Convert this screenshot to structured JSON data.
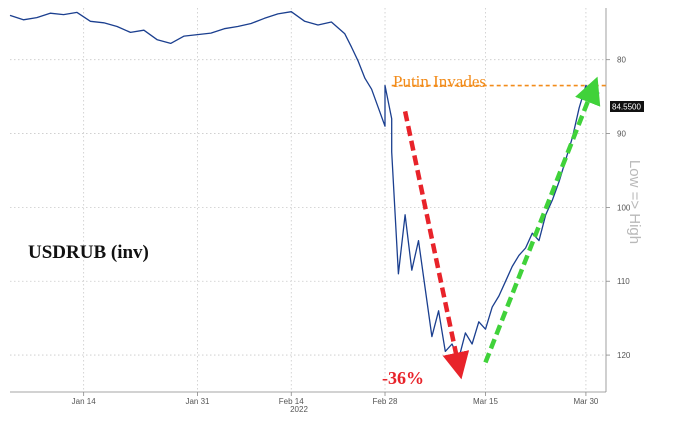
{
  "chart_data": {
    "type": "line",
    "title": "USDRUB (inv)",
    "ylabel": "Low => High",
    "y_inverted": true,
    "ylim": [
      73,
      125
    ],
    "xlim": [
      "2022-01-03",
      "2022-04-02"
    ],
    "y_ticks": [
      80,
      90,
      100,
      110,
      120
    ],
    "x_ticks": [
      {
        "date": "2022-01-14",
        "label": "Jan 14"
      },
      {
        "date": "2022-01-31",
        "label": "Jan 31"
      },
      {
        "date": "2022-02-14",
        "label": "Feb 14"
      },
      {
        "date": "2022-02-28",
        "label": "Feb 28"
      },
      {
        "date": "2022-03-15",
        "label": "Mar 15"
      },
      {
        "date": "2022-03-30",
        "label": "Mar 30"
      }
    ],
    "year_label": "2022",
    "grid": true,
    "last_value": "84.5500",
    "series": [
      {
        "color": "#1b3f8f",
        "points": [
          [
            "2022-01-03",
            74.0
          ],
          [
            "2022-01-05",
            74.6
          ],
          [
            "2022-01-07",
            74.3
          ],
          [
            "2022-01-09",
            73.7
          ],
          [
            "2022-01-11",
            73.9
          ],
          [
            "2022-01-13",
            73.6
          ],
          [
            "2022-01-15",
            74.8
          ],
          [
            "2022-01-17",
            75.0
          ],
          [
            "2022-01-19",
            75.5
          ],
          [
            "2022-01-21",
            76.3
          ],
          [
            "2022-01-23",
            76.0
          ],
          [
            "2022-01-25",
            77.3
          ],
          [
            "2022-01-27",
            77.8
          ],
          [
            "2022-01-29",
            76.8
          ],
          [
            "2022-01-31",
            76.6
          ],
          [
            "2022-02-02",
            76.4
          ],
          [
            "2022-02-04",
            75.8
          ],
          [
            "2022-02-06",
            75.5
          ],
          [
            "2022-02-08",
            75.1
          ],
          [
            "2022-02-10",
            74.4
          ],
          [
            "2022-02-12",
            73.8
          ],
          [
            "2022-02-14",
            73.5
          ],
          [
            "2022-02-16",
            74.8
          ],
          [
            "2022-02-18",
            75.3
          ],
          [
            "2022-02-20",
            74.9
          ],
          [
            "2022-02-22",
            76.5
          ],
          [
            "2022-02-23",
            78.3
          ],
          [
            "2022-02-24",
            80.2
          ],
          [
            "2022-02-25",
            82.5
          ],
          [
            "2022-02-26",
            84.0
          ],
          [
            "2022-02-27",
            86.5
          ],
          [
            "2022-02-28",
            89.0
          ],
          [
            "2022-02-28",
            83.5
          ],
          [
            "2022-03-01",
            88.0
          ],
          [
            "2022-03-01",
            92.5
          ],
          [
            "2022-03-02",
            109.0
          ],
          [
            "2022-03-03",
            101.0
          ],
          [
            "2022-03-04",
            108.5
          ],
          [
            "2022-03-05",
            104.5
          ],
          [
            "2022-03-06",
            111.0
          ],
          [
            "2022-03-07",
            117.5
          ],
          [
            "2022-03-08",
            114.0
          ],
          [
            "2022-03-09",
            119.5
          ],
          [
            "2022-03-10",
            118.5
          ],
          [
            "2022-03-11",
            120.5
          ],
          [
            "2022-03-12",
            117.0
          ],
          [
            "2022-03-13",
            118.5
          ],
          [
            "2022-03-14",
            115.5
          ],
          [
            "2022-03-15",
            116.5
          ],
          [
            "2022-03-16",
            113.5
          ],
          [
            "2022-03-17",
            112.0
          ],
          [
            "2022-03-18",
            110.0
          ],
          [
            "2022-03-19",
            108.0
          ],
          [
            "2022-03-20",
            106.5
          ],
          [
            "2022-03-21",
            105.5
          ],
          [
            "2022-03-22",
            103.5
          ],
          [
            "2022-03-23",
            104.5
          ],
          [
            "2022-03-24",
            101.0
          ],
          [
            "2022-03-25",
            99.0
          ],
          [
            "2022-03-26",
            96.5
          ],
          [
            "2022-03-27",
            93.5
          ],
          [
            "2022-03-28",
            90.5
          ],
          [
            "2022-03-29",
            86.5
          ],
          [
            "2022-03-30",
            83.5
          ],
          [
            "2022-03-31",
            84.2
          ],
          [
            "2022-04-01",
            84.55
          ]
        ]
      }
    ],
    "annotations": [
      {
        "type": "hline",
        "y": 83.5,
        "from": "2022-03-01",
        "to": "2022-04-02",
        "color": "#f28c1b",
        "style": "dashed"
      },
      {
        "type": "text",
        "text": "Putin Invades",
        "color": "#f28c1b"
      },
      {
        "type": "arrow",
        "from": [
          "2022-03-03",
          87.0
        ],
        "to": [
          "2022-03-11",
          121.5
        ],
        "color": "#e8232a",
        "style": "dashed"
      },
      {
        "type": "text",
        "text": "-36%",
        "color": "#e8232a"
      },
      {
        "type": "arrow",
        "from": [
          "2022-03-15",
          121.0
        ],
        "to": [
          "2022-03-31",
          84.0
        ],
        "color": "#40d23a",
        "style": "dashed"
      }
    ]
  }
}
